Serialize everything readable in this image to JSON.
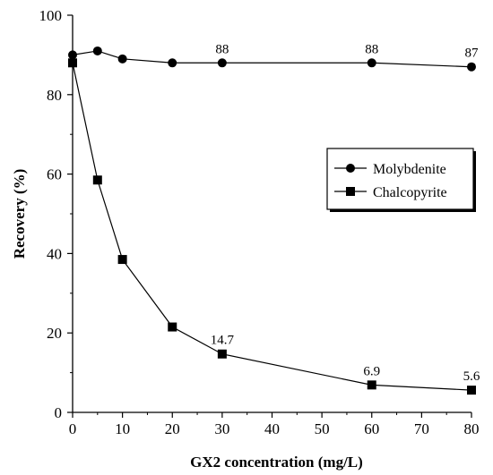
{
  "chart_data": {
    "type": "line",
    "xlabel": "GX2 concentration (mg/L)",
    "ylabel": "Recovery (%)",
    "xlim": [
      0,
      80
    ],
    "ylim": [
      0,
      100
    ],
    "xticks": [
      0,
      10,
      20,
      30,
      40,
      50,
      60,
      70,
      80
    ],
    "yticks": [
      0,
      20,
      40,
      60,
      80,
      100
    ],
    "grid": false,
    "legend_position": "right-middle",
    "series": [
      {
        "name": "Molybdenite",
        "marker": "circle",
        "x": [
          0,
          5,
          10,
          20,
          30,
          60,
          80
        ],
        "y": [
          90,
          91,
          89,
          88,
          88,
          88,
          87
        ],
        "data_labels": [
          {
            "x": 30,
            "text": "88"
          },
          {
            "x": 60,
            "text": "88"
          },
          {
            "x": 80,
            "text": "87"
          }
        ]
      },
      {
        "name": "Chalcopyrite",
        "marker": "square",
        "x": [
          0,
          5,
          10,
          20,
          30,
          60,
          80
        ],
        "y": [
          88,
          58.5,
          38.5,
          21.5,
          14.7,
          6.9,
          5.6
        ],
        "data_labels": [
          {
            "x": 30,
            "text": "14.7"
          },
          {
            "x": 60,
            "text": "6.9"
          },
          {
            "x": 80,
            "text": "5.6"
          }
        ]
      }
    ]
  }
}
